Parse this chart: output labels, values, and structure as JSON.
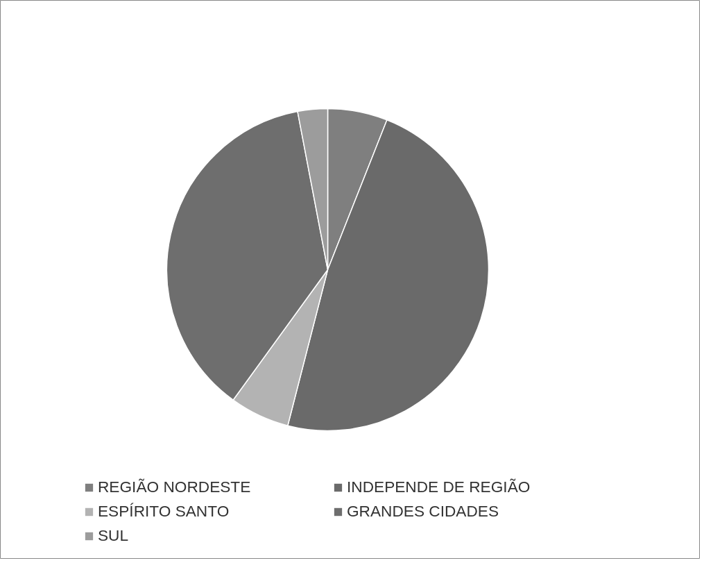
{
  "chart_data": {
    "type": "pie",
    "categories": [
      "REGIÃO NORDESTE",
      "INDEPENDE DE REGIÃO",
      "ESPÍRITO SANTO",
      "GRANDES CIDADES",
      "SUL"
    ],
    "values": [
      6,
      48,
      6,
      37,
      3
    ],
    "colors": [
      "#7f7f7f",
      "#6a6a6a",
      "#b3b3b3",
      "#6e6e6e",
      "#9c9c9c"
    ],
    "legend": "bottom"
  }
}
